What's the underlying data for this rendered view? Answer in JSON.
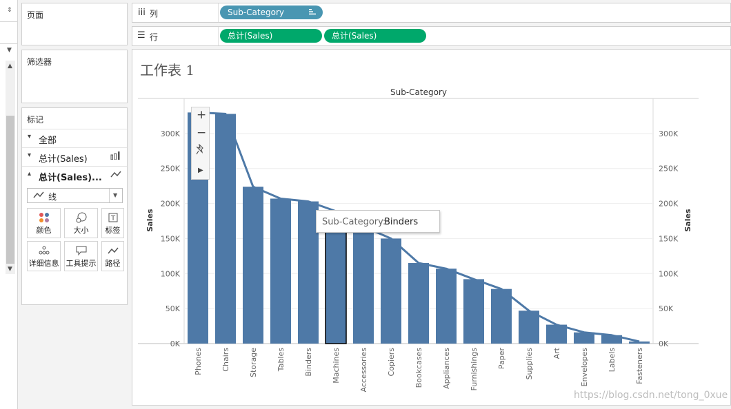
{
  "shelves": {
    "columns": {
      "label": "列",
      "pill": "Sub-Category"
    },
    "rows": {
      "label": "行",
      "pills": [
        "总计(Sales)",
        "总计(Sales)"
      ]
    }
  },
  "panels": {
    "pages": "页面",
    "filters": "筛选器",
    "marks": {
      "title": "标记",
      "rows": [
        "全部",
        "总计(Sales)",
        "总计(Sales)..."
      ],
      "mark_type": "线",
      "buttons": [
        "颜色",
        "大小",
        "标签",
        "详细信息",
        "工具提示",
        "路径"
      ]
    }
  },
  "sheet": {
    "title": "工作表 1"
  },
  "tooltip": {
    "label": "Sub-Category:",
    "value": "Binders"
  },
  "watermark": "https://blog.csdn.net/tong_0xue",
  "colors": {
    "bar": "#4e79a7",
    "line": "#4e79a7",
    "pill_dimension": "#4996b2",
    "pill_measure": "#00a86b"
  },
  "chart_data": {
    "type": "bar",
    "title": "Sub-Category",
    "xlabel": "",
    "ylabel": "Sales",
    "ylabel_right": "Sales",
    "categories": [
      "Phones",
      "Chairs",
      "Storage",
      "Tables",
      "Binders",
      "Machines",
      "Accessories",
      "Copiers",
      "Bookcases",
      "Appliances",
      "Furnishings",
      "Paper",
      "Supplies",
      "Art",
      "Envelopes",
      "Labels",
      "Fasteners"
    ],
    "series": [
      {
        "type": "bar",
        "values": [
          330000,
          328000,
          224000,
          207000,
          203000,
          189000,
          167000,
          150000,
          115000,
          107000,
          92000,
          78000,
          47000,
          27000,
          16000,
          12000,
          3000
        ]
      },
      {
        "type": "line",
        "values": [
          330000,
          328000,
          224000,
          207000,
          203000,
          189000,
          167000,
          150000,
          115000,
          107000,
          92000,
          78000,
          47000,
          27000,
          16000,
          12000,
          3000
        ]
      }
    ],
    "ylim": [
      0,
      350000
    ],
    "yticks": [
      0,
      50000,
      100000,
      150000,
      200000,
      250000,
      300000
    ],
    "ytick_labels": [
      "0K",
      "50K",
      "100K",
      "150K",
      "200K",
      "250K",
      "300K"
    ],
    "highlighted": "Machines",
    "grid": true,
    "legend": "none"
  }
}
